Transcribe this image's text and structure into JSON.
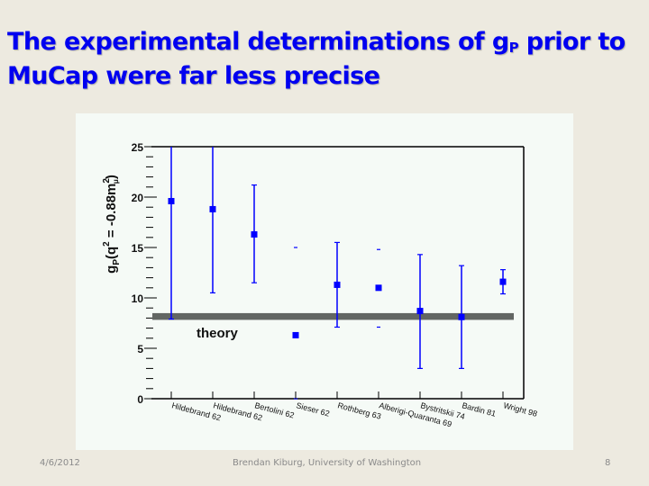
{
  "slide": {
    "title_line1_pre": "The experimental determinations of g",
    "title_sub": "P",
    "title_line1_post": " prior to",
    "title_line2": "MuCap were far less precise"
  },
  "footer": {
    "date": "4/6/2012",
    "author": "Brendan Kiburg, University of Washington",
    "page": "8"
  },
  "colors": {
    "title": "#0000f0",
    "marker": "#0000ff",
    "theory_band": "#626663",
    "panel_bg": "#f5faf6",
    "slide_bg": "#edeae0"
  },
  "chart_data": {
    "type": "scatter",
    "title": "",
    "xlabel": "",
    "ylabel_main": "g",
    "ylabel_sub": "P",
    "ylabel_rest": "(q",
    "ylabel_sup": "2",
    "ylabel_eq": " = -0.88m",
    "ylabel_sup2": "2",
    "ylabel_sub2": "μ",
    "ylabel_close": ")",
    "ylim": [
      0,
      25
    ],
    "yticks": [
      "0",
      "5",
      "10",
      "15",
      "20",
      "25"
    ],
    "grid": false,
    "categories": [
      "Hildebrand 62",
      "Hildebrand 62",
      "Bertolini 62",
      "Sieser 62",
      "Rothberg 63",
      "Alberigi-Quaranta 69",
      "Bystritskii 74",
      "Bardin 81",
      "Wright 98"
    ],
    "series": [
      {
        "name": "measurements",
        "values": [
          19.6,
          18.8,
          16.3,
          6.3,
          11.3,
          11.0,
          8.7,
          8.1,
          11.6
        ],
        "err_high": [
          25,
          25,
          21.2,
          15.0,
          15.5,
          14.8,
          14.3,
          13.2,
          12.8
        ],
        "err_low": [
          7.9,
          10.5,
          11.5,
          0,
          7.1,
          7.1,
          3.0,
          3.0,
          10.4
        ],
        "error_bar_style": [
          "line",
          "line",
          "line",
          "caps-only",
          "line",
          "caps-only",
          "line",
          "line",
          "line"
        ]
      }
    ],
    "annotations": [
      {
        "text": "theory",
        "value": 8.2,
        "band": [
          8.0,
          8.4
        ]
      }
    ]
  }
}
